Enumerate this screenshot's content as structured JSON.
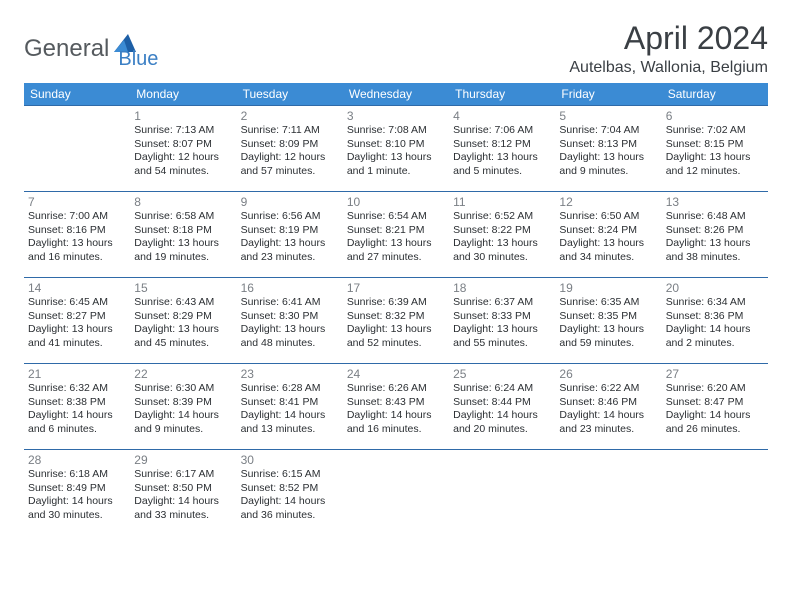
{
  "logo": {
    "general": "General",
    "blue": "Blue",
    "shape_color": "#1d5fa6"
  },
  "title": "April 2024",
  "location": "Autelbas, Wallonia, Belgium",
  "colors": {
    "header_bg": "#3b8bd4",
    "header_text": "#ffffff",
    "row_border": "#2f6aa8",
    "daynum": "#7a7f85",
    "body_text": "#2b2f33",
    "title_text": "#3a3f44"
  },
  "weekdays": [
    "Sunday",
    "Monday",
    "Tuesday",
    "Wednesday",
    "Thursday",
    "Friday",
    "Saturday"
  ],
  "weeks": [
    [
      null,
      {
        "n": "1",
        "sr": "Sunrise: 7:13 AM",
        "ss": "Sunset: 8:07 PM",
        "d1": "Daylight: 12 hours",
        "d2": "and 54 minutes."
      },
      {
        "n": "2",
        "sr": "Sunrise: 7:11 AM",
        "ss": "Sunset: 8:09 PM",
        "d1": "Daylight: 12 hours",
        "d2": "and 57 minutes."
      },
      {
        "n": "3",
        "sr": "Sunrise: 7:08 AM",
        "ss": "Sunset: 8:10 PM",
        "d1": "Daylight: 13 hours",
        "d2": "and 1 minute."
      },
      {
        "n": "4",
        "sr": "Sunrise: 7:06 AM",
        "ss": "Sunset: 8:12 PM",
        "d1": "Daylight: 13 hours",
        "d2": "and 5 minutes."
      },
      {
        "n": "5",
        "sr": "Sunrise: 7:04 AM",
        "ss": "Sunset: 8:13 PM",
        "d1": "Daylight: 13 hours",
        "d2": "and 9 minutes."
      },
      {
        "n": "6",
        "sr": "Sunrise: 7:02 AM",
        "ss": "Sunset: 8:15 PM",
        "d1": "Daylight: 13 hours",
        "d2": "and 12 minutes."
      }
    ],
    [
      {
        "n": "7",
        "sr": "Sunrise: 7:00 AM",
        "ss": "Sunset: 8:16 PM",
        "d1": "Daylight: 13 hours",
        "d2": "and 16 minutes."
      },
      {
        "n": "8",
        "sr": "Sunrise: 6:58 AM",
        "ss": "Sunset: 8:18 PM",
        "d1": "Daylight: 13 hours",
        "d2": "and 19 minutes."
      },
      {
        "n": "9",
        "sr": "Sunrise: 6:56 AM",
        "ss": "Sunset: 8:19 PM",
        "d1": "Daylight: 13 hours",
        "d2": "and 23 minutes."
      },
      {
        "n": "10",
        "sr": "Sunrise: 6:54 AM",
        "ss": "Sunset: 8:21 PM",
        "d1": "Daylight: 13 hours",
        "d2": "and 27 minutes."
      },
      {
        "n": "11",
        "sr": "Sunrise: 6:52 AM",
        "ss": "Sunset: 8:22 PM",
        "d1": "Daylight: 13 hours",
        "d2": "and 30 minutes."
      },
      {
        "n": "12",
        "sr": "Sunrise: 6:50 AM",
        "ss": "Sunset: 8:24 PM",
        "d1": "Daylight: 13 hours",
        "d2": "and 34 minutes."
      },
      {
        "n": "13",
        "sr": "Sunrise: 6:48 AM",
        "ss": "Sunset: 8:26 PM",
        "d1": "Daylight: 13 hours",
        "d2": "and 38 minutes."
      }
    ],
    [
      {
        "n": "14",
        "sr": "Sunrise: 6:45 AM",
        "ss": "Sunset: 8:27 PM",
        "d1": "Daylight: 13 hours",
        "d2": "and 41 minutes."
      },
      {
        "n": "15",
        "sr": "Sunrise: 6:43 AM",
        "ss": "Sunset: 8:29 PM",
        "d1": "Daylight: 13 hours",
        "d2": "and 45 minutes."
      },
      {
        "n": "16",
        "sr": "Sunrise: 6:41 AM",
        "ss": "Sunset: 8:30 PM",
        "d1": "Daylight: 13 hours",
        "d2": "and 48 minutes."
      },
      {
        "n": "17",
        "sr": "Sunrise: 6:39 AM",
        "ss": "Sunset: 8:32 PM",
        "d1": "Daylight: 13 hours",
        "d2": "and 52 minutes."
      },
      {
        "n": "18",
        "sr": "Sunrise: 6:37 AM",
        "ss": "Sunset: 8:33 PM",
        "d1": "Daylight: 13 hours",
        "d2": "and 55 minutes."
      },
      {
        "n": "19",
        "sr": "Sunrise: 6:35 AM",
        "ss": "Sunset: 8:35 PM",
        "d1": "Daylight: 13 hours",
        "d2": "and 59 minutes."
      },
      {
        "n": "20",
        "sr": "Sunrise: 6:34 AM",
        "ss": "Sunset: 8:36 PM",
        "d1": "Daylight: 14 hours",
        "d2": "and 2 minutes."
      }
    ],
    [
      {
        "n": "21",
        "sr": "Sunrise: 6:32 AM",
        "ss": "Sunset: 8:38 PM",
        "d1": "Daylight: 14 hours",
        "d2": "and 6 minutes."
      },
      {
        "n": "22",
        "sr": "Sunrise: 6:30 AM",
        "ss": "Sunset: 8:39 PM",
        "d1": "Daylight: 14 hours",
        "d2": "and 9 minutes."
      },
      {
        "n": "23",
        "sr": "Sunrise: 6:28 AM",
        "ss": "Sunset: 8:41 PM",
        "d1": "Daylight: 14 hours",
        "d2": "and 13 minutes."
      },
      {
        "n": "24",
        "sr": "Sunrise: 6:26 AM",
        "ss": "Sunset: 8:43 PM",
        "d1": "Daylight: 14 hours",
        "d2": "and 16 minutes."
      },
      {
        "n": "25",
        "sr": "Sunrise: 6:24 AM",
        "ss": "Sunset: 8:44 PM",
        "d1": "Daylight: 14 hours",
        "d2": "and 20 minutes."
      },
      {
        "n": "26",
        "sr": "Sunrise: 6:22 AM",
        "ss": "Sunset: 8:46 PM",
        "d1": "Daylight: 14 hours",
        "d2": "and 23 minutes."
      },
      {
        "n": "27",
        "sr": "Sunrise: 6:20 AM",
        "ss": "Sunset: 8:47 PM",
        "d1": "Daylight: 14 hours",
        "d2": "and 26 minutes."
      }
    ],
    [
      {
        "n": "28",
        "sr": "Sunrise: 6:18 AM",
        "ss": "Sunset: 8:49 PM",
        "d1": "Daylight: 14 hours",
        "d2": "and 30 minutes."
      },
      {
        "n": "29",
        "sr": "Sunrise: 6:17 AM",
        "ss": "Sunset: 8:50 PM",
        "d1": "Daylight: 14 hours",
        "d2": "and 33 minutes."
      },
      {
        "n": "30",
        "sr": "Sunrise: 6:15 AM",
        "ss": "Sunset: 8:52 PM",
        "d1": "Daylight: 14 hours",
        "d2": "and 36 minutes."
      },
      null,
      null,
      null,
      null
    ]
  ]
}
